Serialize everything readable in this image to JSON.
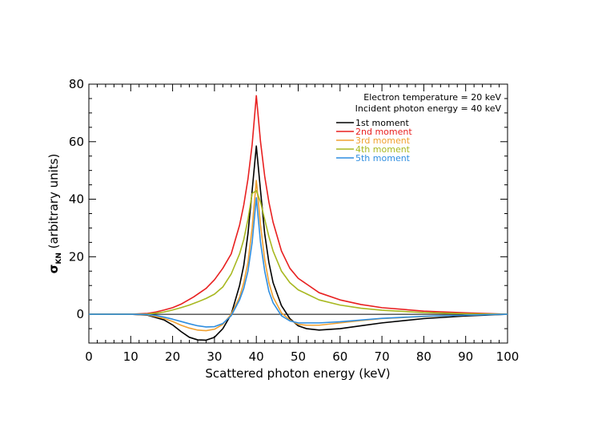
{
  "chart_data": {
    "type": "line",
    "title": "",
    "xlabel": "Scattered photon energy (keV)",
    "ylabel": "σKN (arbitrary units)",
    "ylabel_main": "σ",
    "ylabel_sub": "KN",
    "ylabel_rest": " (arbitrary units)",
    "xlim": [
      0,
      100
    ],
    "ylim": [
      -10,
      80
    ],
    "xticks": [
      0,
      10,
      20,
      30,
      40,
      50,
      60,
      70,
      80,
      90,
      100
    ],
    "yticks": [
      0,
      20,
      40,
      60,
      80
    ],
    "grid": false,
    "legend_position": "top-right",
    "annotations": [
      "Electron temperature = 20 keV",
      "Incident photon energy = 40 keV"
    ],
    "zero_line": true,
    "series": [
      {
        "name": "1st moment",
        "color": "#000000",
        "x": [
          0,
          10,
          14,
          18,
          20,
          22,
          24,
          26,
          28,
          30,
          32,
          34,
          36,
          37,
          38,
          39,
          40,
          41,
          42,
          43,
          44,
          46,
          48,
          50,
          52,
          55,
          60,
          65,
          70,
          80,
          90,
          100
        ],
        "y": [
          0,
          0,
          -0.3,
          -2,
          -3.7,
          -6,
          -8,
          -8.9,
          -9,
          -8,
          -5,
          0,
          10,
          17,
          28,
          43,
          58.5,
          43,
          28,
          18,
          11,
          3,
          -1.5,
          -4,
          -5,
          -5.5,
          -5,
          -4,
          -3,
          -1.5,
          -0.6,
          0
        ]
      },
      {
        "name": "2nd moment",
        "color": "#e82020",
        "x": [
          0,
          10,
          14,
          16,
          18,
          20,
          22,
          25,
          28,
          30,
          32,
          34,
          36,
          37,
          38,
          39,
          40,
          41,
          42,
          43,
          44,
          46,
          48,
          50,
          55,
          60,
          65,
          70,
          80,
          90,
          100
        ],
        "y": [
          0,
          0,
          0.3,
          0.8,
          1.5,
          2.3,
          3.5,
          6,
          9,
          12,
          16,
          21,
          31,
          38,
          47,
          59,
          76,
          60,
          48,
          39,
          32,
          22,
          16,
          12.5,
          7.5,
          5,
          3.4,
          2.3,
          1.1,
          0.5,
          0
        ]
      },
      {
        "name": "3rd moment",
        "color": "#f0a030",
        "x": [
          0,
          10,
          14,
          16,
          18,
          20,
          22,
          24,
          26,
          28,
          30,
          32,
          34,
          36,
          37,
          38,
          39,
          40,
          41,
          42,
          43,
          44,
          46,
          48,
          50,
          52,
          55,
          60,
          65,
          70,
          80,
          90,
          100
        ],
        "y": [
          0,
          0,
          -0.2,
          -0.8,
          -1.5,
          -2.5,
          -3.8,
          -4.8,
          -5.5,
          -5.7,
          -5.2,
          -3.5,
          0,
          6,
          11,
          18,
          30,
          46.5,
          31,
          19,
          11,
          6,
          0.5,
          -2,
          -3.5,
          -3.8,
          -3.8,
          -3,
          -2.2,
          -1.5,
          -0.8,
          -0.3,
          0
        ]
      },
      {
        "name": "4th moment",
        "color": "#a8b820",
        "x": [
          0,
          10,
          14,
          16,
          18,
          20,
          22,
          24,
          26,
          28,
          30,
          32,
          34,
          36,
          37,
          38,
          39,
          40,
          41,
          42,
          43,
          44,
          46,
          48,
          50,
          55,
          60,
          65,
          70,
          80,
          90,
          100
        ],
        "y": [
          0,
          0,
          0.1,
          0.4,
          0.8,
          1.5,
          2.3,
          3.2,
          4.3,
          5.5,
          7,
          9.5,
          14,
          21,
          26,
          33,
          42,
          43,
          39,
          33,
          27,
          22,
          15,
          11,
          8.5,
          5,
          3.2,
          2.1,
          1.4,
          0.6,
          0.2,
          0
        ]
      },
      {
        "name": "5th moment",
        "color": "#2f8ee0",
        "x": [
          0,
          10,
          14,
          16,
          18,
          20,
          22,
          24,
          26,
          28,
          30,
          32,
          34,
          36,
          37,
          38,
          39,
          40,
          41,
          42,
          43,
          44,
          46,
          48,
          50,
          55,
          60,
          65,
          70,
          80,
          90,
          100
        ],
        "y": [
          0,
          0,
          -0.1,
          -0.4,
          -1,
          -1.7,
          -2.5,
          -3.3,
          -4,
          -4.4,
          -4.3,
          -3.2,
          -0.5,
          5,
          9,
          15,
          25,
          40.5,
          25,
          15,
          8,
          4,
          -0.5,
          -2.3,
          -3,
          -3,
          -2.6,
          -2,
          -1.4,
          -0.7,
          -0.3,
          0
        ]
      }
    ]
  }
}
